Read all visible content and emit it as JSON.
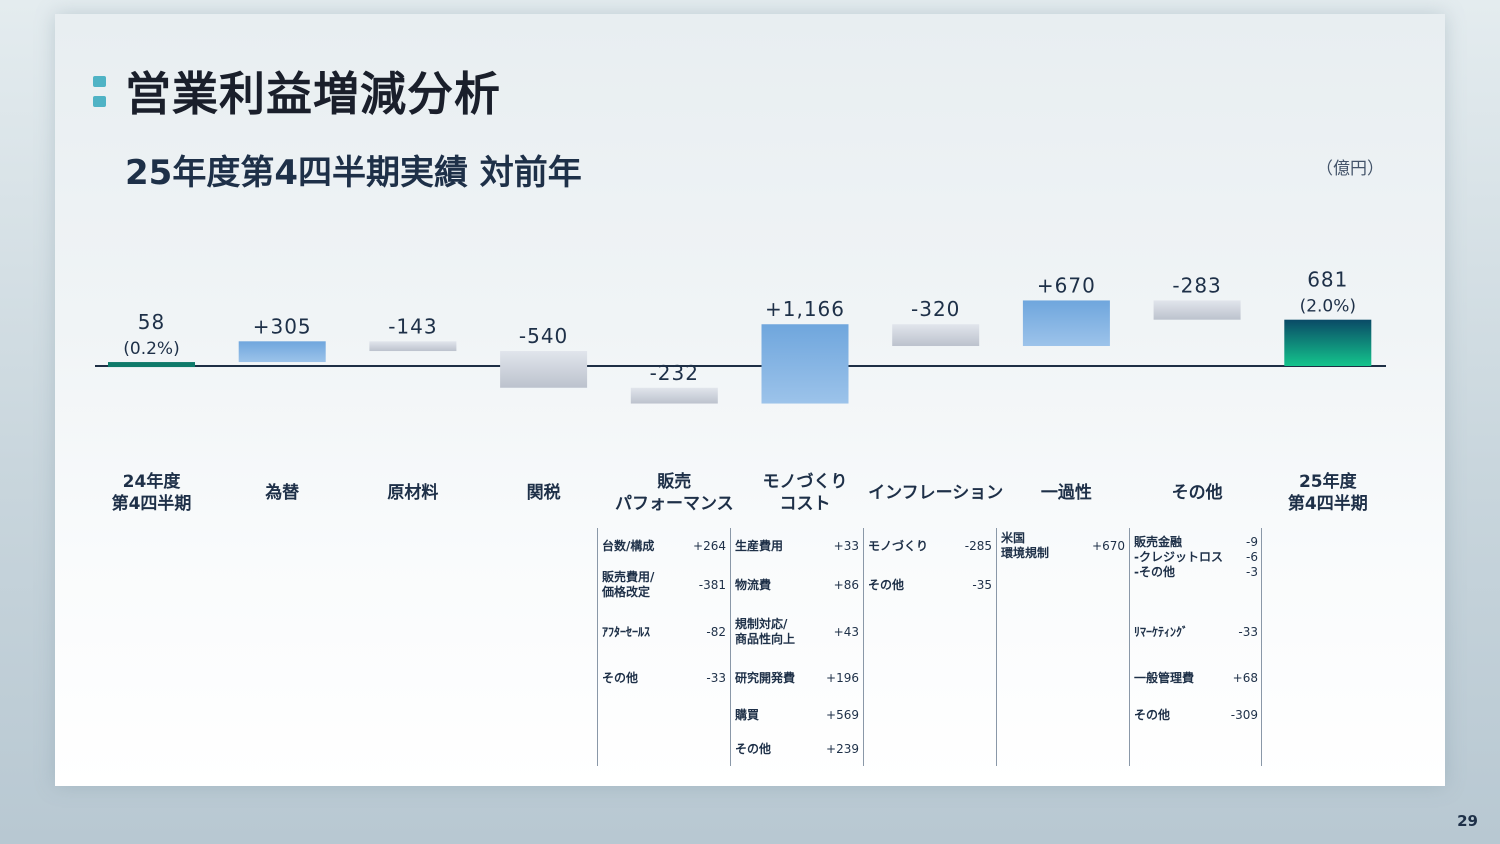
{
  "title": "営業利益増減分析",
  "subtitle": "25年度第4四半期実績 対前年",
  "unit": "（億円）",
  "page_number": "29",
  "colors": {
    "start_bar": "#0e7a6a",
    "end_bar_top": "#0a4a66",
    "end_bar_bottom": "#14c48c",
    "positive": "#6fa6dd",
    "negative": "#c4cad4",
    "accent_mark": "#4fb3c5"
  },
  "chart_data": {
    "type": "bar",
    "subtype": "waterfall",
    "categories": [
      "24年度\n第4四半期",
      "為替",
      "原材料",
      "関税",
      "販売\nパフォーマンス",
      "モノづくり\nコスト",
      "インフレーション",
      "一過性",
      "その他",
      "25年度\n第4四半期"
    ],
    "values": [
      58,
      305,
      -143,
      -540,
      -232,
      1166,
      -320,
      670,
      -283,
      681
    ],
    "kinds": [
      "total",
      "delta",
      "delta",
      "delta",
      "delta",
      "delta",
      "delta",
      "delta",
      "delta",
      "total"
    ],
    "value_labels": [
      "58",
      "+305",
      "-143",
      "-540",
      "-232",
      "+1,166",
      "-320",
      "+670",
      "-283",
      "681"
    ],
    "sub_labels": [
      "(0.2%)",
      "",
      "",
      "",
      "",
      "",
      "",
      "",
      "",
      "(2.0%)"
    ]
  },
  "breakdowns": [
    {
      "category": "販売パフォーマンス",
      "items": [
        {
          "label": "台数/構成",
          "value": "+264"
        },
        {
          "label": "販売費用/\n価格改定",
          "value": "-381"
        },
        {
          "label": "ｱﾌﾀｰｾｰﾙｽ",
          "value": "-82"
        },
        {
          "label": "その他",
          "value": "-33"
        }
      ]
    },
    {
      "category": "モノづくりコスト",
      "items": [
        {
          "label": "生産費用",
          "value": "+33"
        },
        {
          "label": "物流費",
          "value": "+86"
        },
        {
          "label": "規制対応/\n商品性向上",
          "value": "+43"
        },
        {
          "label": "研究開発費",
          "value": "+196"
        },
        {
          "label": "購買",
          "value": "+569"
        },
        {
          "label": "その他",
          "value": "+239"
        }
      ]
    },
    {
      "category": "インフレーション",
      "items": [
        {
          "label": "モノづくり",
          "value": "-285"
        },
        {
          "label": "その他",
          "value": "-35"
        }
      ]
    },
    {
      "category": "一過性",
      "items": [
        {
          "label": "米国\n環境規制",
          "value": "+670"
        }
      ]
    },
    {
      "category": "その他",
      "items": [
        {
          "label": "販売金融\n-クレジットロス\n-その他",
          "value": "-9\n-6\n-3"
        },
        {
          "label": "ﾘﾏｰｹﾃｨﾝｸﾞ",
          "value": "-33"
        },
        {
          "label": "一般管理費",
          "value": "+68"
        },
        {
          "label": "その他",
          "value": "-309"
        }
      ]
    }
  ]
}
